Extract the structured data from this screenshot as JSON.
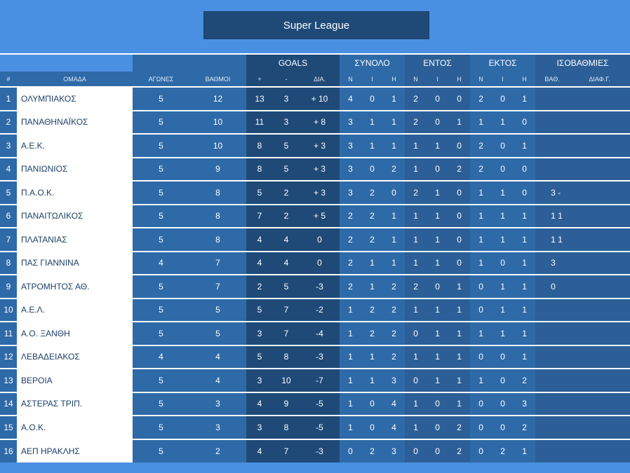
{
  "title": "Super League",
  "headers": {
    "num": "#",
    "team": "ΟΜΑΔΑ",
    "games": "ΑΓΩΝΕΣ",
    "points": "ΒΑΘΜΟΙ",
    "goals": "GOALS",
    "goals_for": "+",
    "goals_against": "-",
    "goals_diff": "ΔΙΑ.",
    "total": "ΣΥΝΟΛΟ",
    "home": "ΕΝΤΟΣ",
    "away": "ΕΚΤΟΣ",
    "win": "Ν",
    "draw": "Ι",
    "loss": "Η",
    "ties": "ΙΣΟΒΑΘΜΙΕΣ",
    "ties_points": "ΒΑΘ.",
    "ties_diff": "ΔΙΑΦ.Γ."
  },
  "rows": [
    {
      "pos": "1",
      "team": "ΟΛΥΜΠΙΑΚΟΣ",
      "games": "5",
      "points": "12",
      "gf": "13",
      "ga": "3",
      "gd": "+ 10",
      "tn": "4",
      "ti": "0",
      "th": "1",
      "hn": "2",
      "hi": "0",
      "hh": "0",
      "an": "2",
      "ai": "0",
      "ah": "1",
      "iso": ""
    },
    {
      "pos": "2",
      "team": "ΠΑΝΑΘΗΝΑΪΚΟΣ",
      "games": "5",
      "points": "10",
      "gf": "11",
      "ga": "3",
      "gd": "+ 8",
      "tn": "3",
      "ti": "1",
      "th": "1",
      "hn": "2",
      "hi": "0",
      "hh": "1",
      "an": "1",
      "ai": "1",
      "ah": "0",
      "iso": ""
    },
    {
      "pos": "3",
      "team": "Α.Ε.Κ.",
      "games": "5",
      "points": "10",
      "gf": "8",
      "ga": "5",
      "gd": "+ 3",
      "tn": "3",
      "ti": "1",
      "th": "1",
      "hn": "1",
      "hi": "1",
      "hh": "0",
      "an": "2",
      "ai": "0",
      "ah": "1",
      "iso": ""
    },
    {
      "pos": "4",
      "team": "ΠΑΝΙΩΝΙΟΣ",
      "games": "5",
      "points": "9",
      "gf": "8",
      "ga": "5",
      "gd": "+ 3",
      "tn": "3",
      "ti": "0",
      "th": "2",
      "hn": "1",
      "hi": "0",
      "hh": "2",
      "an": "2",
      "ai": "0",
      "ah": "0",
      "iso": ""
    },
    {
      "pos": "5",
      "team": "Π.Α.Ο.Κ.",
      "games": "5",
      "points": "8",
      "gf": "5",
      "ga": "2",
      "gd": "+ 3",
      "tn": "3",
      "ti": "2",
      "th": "0",
      "hn": "2",
      "hi": "1",
      "hh": "0",
      "an": "1",
      "ai": "1",
      "ah": "0",
      "iso": "3 -"
    },
    {
      "pos": "6",
      "team": "ΠΑΝΑΙΤΩΛΙΚΟΣ",
      "games": "5",
      "points": "8",
      "gf": "7",
      "ga": "2",
      "gd": "+ 5",
      "tn": "2",
      "ti": "2",
      "th": "1",
      "hn": "1",
      "hi": "1",
      "hh": "0",
      "an": "1",
      "ai": "1",
      "ah": "1",
      "iso": "1 1"
    },
    {
      "pos": "7",
      "team": "ΠΛΑΤΑΝΙΑΣ",
      "games": "5",
      "points": "8",
      "gf": "4",
      "ga": "4",
      "gd": "0",
      "tn": "2",
      "ti": "2",
      "th": "1",
      "hn": "1",
      "hi": "1",
      "hh": "0",
      "an": "1",
      "ai": "1",
      "ah": "1",
      "iso": "1 1"
    },
    {
      "pos": "8",
      "team": "ΠΑΣ ΓΙΑΝΝΙΝΑ",
      "games": "4",
      "points": "7",
      "gf": "4",
      "ga": "4",
      "gd": "0",
      "tn": "2",
      "ti": "1",
      "th": "1",
      "hn": "1",
      "hi": "1",
      "hh": "0",
      "an": "1",
      "ai": "0",
      "ah": "1",
      "iso": "3"
    },
    {
      "pos": "9",
      "team": "ΑΤΡΟΜΗΤΟΣ ΑΘ.",
      "games": "5",
      "points": "7",
      "gf": "2",
      "ga": "5",
      "gd": "-3",
      "tn": "2",
      "ti": "1",
      "th": "2",
      "hn": "2",
      "hi": "0",
      "hh": "1",
      "an": "0",
      "ai": "1",
      "ah": "1",
      "iso": "0"
    },
    {
      "pos": "10",
      "team": "Α.Ε.Λ.",
      "games": "5",
      "points": "5",
      "gf": "5",
      "ga": "7",
      "gd": "-2",
      "tn": "1",
      "ti": "2",
      "th": "2",
      "hn": "1",
      "hi": "1",
      "hh": "1",
      "an": "0",
      "ai": "1",
      "ah": "1",
      "iso": ""
    },
    {
      "pos": "11",
      "team": "Α.Ο. ΞΑΝΘΗ",
      "games": "5",
      "points": "5",
      "gf": "3",
      "ga": "7",
      "gd": "-4",
      "tn": "1",
      "ti": "2",
      "th": "2",
      "hn": "0",
      "hi": "1",
      "hh": "1",
      "an": "1",
      "ai": "1",
      "ah": "1",
      "iso": ""
    },
    {
      "pos": "12",
      "team": "ΛΕΒΑΔΕΙΑΚΟΣ",
      "games": "4",
      "points": "4",
      "gf": "5",
      "ga": "8",
      "gd": "-3",
      "tn": "1",
      "ti": "1",
      "th": "2",
      "hn": "1",
      "hi": "1",
      "hh": "1",
      "an": "0",
      "ai": "0",
      "ah": "1",
      "iso": ""
    },
    {
      "pos": "13",
      "team": "ΒΕΡΟΙΑ",
      "games": "5",
      "points": "4",
      "gf": "3",
      "ga": "10",
      "gd": "-7",
      "tn": "1",
      "ti": "1",
      "th": "3",
      "hn": "0",
      "hi": "1",
      "hh": "1",
      "an": "1",
      "ai": "0",
      "ah": "2",
      "iso": ""
    },
    {
      "pos": "14",
      "team": "ΑΣΤΕΡΑΣ ΤΡΙΠ.",
      "games": "5",
      "points": "3",
      "gf": "4",
      "ga": "9",
      "gd": "-5",
      "tn": "1",
      "ti": "0",
      "th": "4",
      "hn": "1",
      "hi": "0",
      "hh": "1",
      "an": "0",
      "ai": "0",
      "ah": "3",
      "iso": ""
    },
    {
      "pos": "15",
      "team": "Α.Ο.Κ.",
      "games": "5",
      "points": "3",
      "gf": "3",
      "ga": "8",
      "gd": "-5",
      "tn": "1",
      "ti": "0",
      "th": "4",
      "hn": "1",
      "hi": "0",
      "hh": "2",
      "an": "0",
      "ai": "0",
      "ah": "2",
      "iso": ""
    },
    {
      "pos": "16",
      "team": "ΑΕΠ ΗΡΑΚΛΗΣ",
      "games": "5",
      "points": "2",
      "gf": "4",
      "ga": "7",
      "gd": "-3",
      "tn": "0",
      "ti": "2",
      "th": "3",
      "hn": "0",
      "hi": "0",
      "hh": "2",
      "an": "0",
      "ai": "2",
      "ah": "1",
      "iso": ""
    }
  ]
}
